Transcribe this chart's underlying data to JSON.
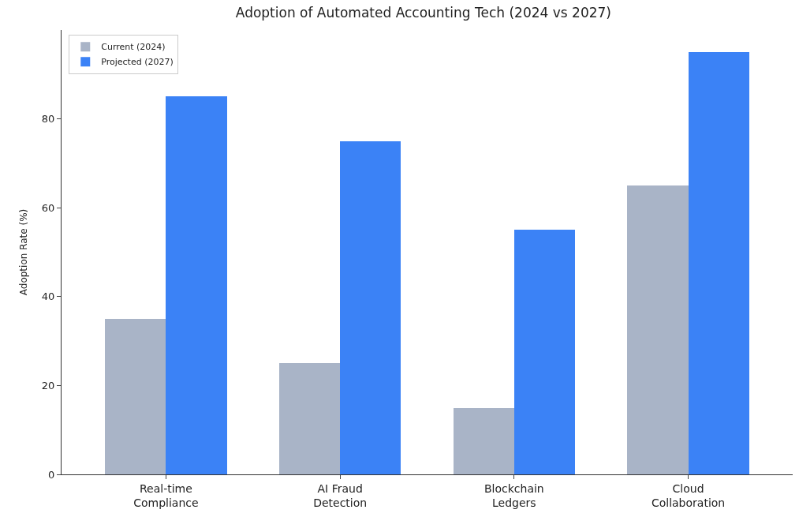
{
  "chart_data": {
    "type": "bar",
    "title": "Adoption of Automated Accounting Tech (2024 vs 2027)",
    "ylabel": "Adoption Rate (%)",
    "categories": [
      "Real-time\nCompliance",
      "AI Fraud\nDetection",
      "Blockchain\nLedgers",
      "Cloud\nCollaboration"
    ],
    "series": [
      {
        "name": "Current (2024)",
        "color": "#a9b4c7",
        "values": [
          35,
          25,
          15,
          65
        ]
      },
      {
        "name": "Projected (2027)",
        "color": "#3b82f6",
        "values": [
          85,
          75,
          55,
          95
        ]
      }
    ],
    "ylim": [
      0,
      100
    ],
    "yticks": [
      0,
      20,
      40,
      60,
      80
    ],
    "legend": "top left"
  }
}
